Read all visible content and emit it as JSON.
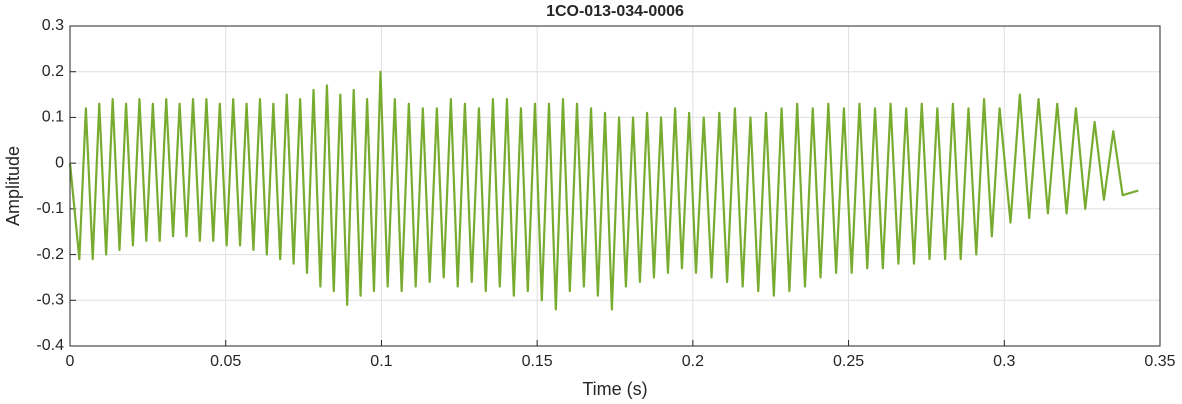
{
  "chart_data": {
    "type": "line",
    "title": "1CO-013-034-0006",
    "x_label": "Time (s)",
    "y_label": "Amplitude",
    "xlim": [
      0,
      0.35
    ],
    "xticks": [
      0,
      0.05,
      0.1,
      0.15,
      0.2,
      0.25,
      0.3,
      0.35
    ],
    "ylim": [
      -0.4,
      0.3
    ],
    "yticks": [
      -0.4,
      -0.3,
      -0.2,
      -0.1,
      0,
      0.1,
      0.2,
      0.3
    ],
    "grid": true,
    "series": [
      {
        "color": "#77ac30",
        "x": [
          0,
          0.003,
          0.0051,
          0.0073,
          0.0094,
          0.0116,
          0.0137,
          0.0159,
          0.018,
          0.0202,
          0.0223,
          0.0245,
          0.0266,
          0.0288,
          0.0309,
          0.0331,
          0.0352,
          0.0374,
          0.0395,
          0.0417,
          0.0438,
          0.046,
          0.0481,
          0.0503,
          0.0524,
          0.0546,
          0.0567,
          0.0589,
          0.061,
          0.0632,
          0.0653,
          0.0675,
          0.0696,
          0.0718,
          0.0739,
          0.0761,
          0.0782,
          0.0804,
          0.0825,
          0.0847,
          0.0868,
          0.089,
          0.0911,
          0.0933,
          0.0954,
          0.0976,
          0.0997,
          0.102,
          0.1043,
          0.1065,
          0.1088,
          0.111,
          0.1133,
          0.1155,
          0.1178,
          0.12,
          0.1223,
          0.1245,
          0.1268,
          0.129,
          0.1313,
          0.1335,
          0.1358,
          0.138,
          0.1403,
          0.1425,
          0.1448,
          0.147,
          0.1493,
          0.1515,
          0.1538,
          0.156,
          0.1583,
          0.1605,
          0.1628,
          0.165,
          0.1673,
          0.1695,
          0.1718,
          0.174,
          0.1763,
          0.1785,
          0.1808,
          0.183,
          0.1853,
          0.1875,
          0.1898,
          0.192,
          0.1943,
          0.1965,
          0.1988,
          0.201,
          0.2035,
          0.206,
          0.2085,
          0.211,
          0.2135,
          0.216,
          0.2185,
          0.221,
          0.2235,
          0.226,
          0.2285,
          0.231,
          0.2335,
          0.236,
          0.2385,
          0.241,
          0.2435,
          0.246,
          0.2485,
          0.251,
          0.2535,
          0.256,
          0.2585,
          0.261,
          0.2635,
          0.266,
          0.2685,
          0.271,
          0.2735,
          0.276,
          0.2785,
          0.281,
          0.2835,
          0.286,
          0.2885,
          0.291,
          0.2935,
          0.296,
          0.2985,
          0.302,
          0.305,
          0.308,
          0.311,
          0.314,
          0.317,
          0.32,
          0.323,
          0.326,
          0.329,
          0.332,
          0.335,
          0.338,
          0.343
        ],
        "values": [
          0,
          -0.21,
          0.12,
          -0.21,
          0.13,
          -0.2,
          0.14,
          -0.19,
          0.13,
          -0.18,
          0.14,
          -0.17,
          0.13,
          -0.17,
          0.14,
          -0.16,
          0.13,
          -0.16,
          0.14,
          -0.17,
          0.14,
          -0.17,
          0.13,
          -0.18,
          0.14,
          -0.18,
          0.13,
          -0.19,
          0.14,
          -0.2,
          0.13,
          -0.21,
          0.15,
          -0.22,
          0.14,
          -0.24,
          0.16,
          -0.27,
          0.17,
          -0.28,
          0.15,
          -0.31,
          0.16,
          -0.29,
          0.14,
          -0.28,
          0.2,
          -0.27,
          0.14,
          -0.28,
          0.13,
          -0.27,
          0.12,
          -0.26,
          0.12,
          -0.25,
          0.14,
          -0.27,
          0.13,
          -0.26,
          0.12,
          -0.28,
          0.14,
          -0.27,
          0.14,
          -0.29,
          0.12,
          -0.28,
          0.13,
          -0.3,
          0.13,
          -0.32,
          0.14,
          -0.28,
          0.13,
          -0.27,
          0.12,
          -0.29,
          0.11,
          -0.32,
          0.1,
          -0.27,
          0.1,
          -0.26,
          0.11,
          -0.25,
          0.1,
          -0.24,
          0.12,
          -0.23,
          0.11,
          -0.24,
          0.1,
          -0.25,
          0.11,
          -0.26,
          0.12,
          -0.27,
          0.1,
          -0.28,
          0.11,
          -0.29,
          0.12,
          -0.28,
          0.13,
          -0.27,
          0.12,
          -0.25,
          0.13,
          -0.24,
          0.12,
          -0.24,
          0.13,
          -0.23,
          0.12,
          -0.23,
          0.13,
          -0.22,
          0.12,
          -0.22,
          0.13,
          -0.21,
          0.12,
          -0.21,
          0.13,
          -0.21,
          0.12,
          -0.2,
          0.14,
          -0.16,
          0.12,
          -0.13,
          0.15,
          -0.12,
          0.14,
          -0.11,
          0.13,
          -0.11,
          0.12,
          -0.1,
          0.09,
          -0.08,
          0.07,
          -0.07,
          -0.06
        ]
      }
    ]
  }
}
